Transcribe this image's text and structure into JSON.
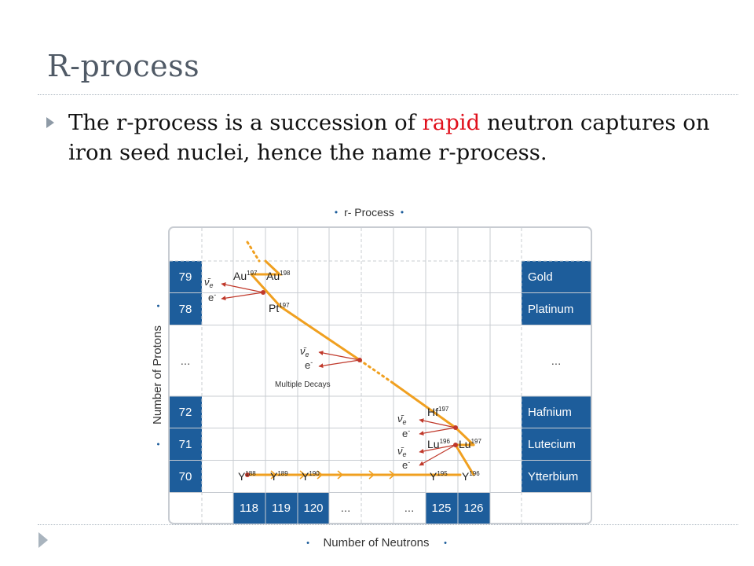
{
  "slide": {
    "title": "R-process",
    "bullet": {
      "before": "The r-process is a succession of ",
      "emphasis": "rapid",
      "after": " neutron captures on iron seed nuclei, hence the name r-process."
    },
    "accent_color": "#e0101c"
  },
  "diagram": {
    "title": "r- Process",
    "x_axis_label": "Number of Neutrons",
    "y_axis_label": "Number of Protons",
    "colors": {
      "cell_blue": "#1d5d9b",
      "path_orange": "#f0a020",
      "arrow_red": "#c0392b",
      "grid": "#c8ccd2"
    },
    "proton_labels": [
      "79",
      "78",
      "...",
      "72",
      "71",
      "70"
    ],
    "element_names": [
      "Gold",
      "Platinum",
      "...",
      "Hafnium",
      "Lutecium",
      "Ytterbium"
    ],
    "neutron_labels": [
      "118",
      "119",
      "120",
      "...",
      "...",
      "125",
      "126"
    ],
    "nuclides": {
      "au197": {
        "sym": "Au",
        "mass": "197"
      },
      "au198": {
        "sym": "Au",
        "mass": "198"
      },
      "pt197": {
        "sym": "Pt",
        "mass": "197"
      },
      "hf197": {
        "sym": "Hf",
        "mass": "197"
      },
      "lu196": {
        "sym": "Lu",
        "mass": "196"
      },
      "lu197": {
        "sym": "Lu",
        "mass": "197"
      },
      "yb188": {
        "sym": "Y",
        "mass": "188"
      },
      "yb189": {
        "sym": "Y",
        "mass": "189"
      },
      "yb190": {
        "sym": "Y",
        "mass": "190"
      },
      "yb195": {
        "sym": "Y",
        "mass": "195"
      },
      "yb196": {
        "sym": "Y",
        "mass": "196"
      }
    },
    "decay_labels": {
      "neutrino": "ν̄",
      "neutrino_sub": "e",
      "electron": "e",
      "electron_sup": "-"
    },
    "multiple_decays": "Multiple Decays"
  }
}
